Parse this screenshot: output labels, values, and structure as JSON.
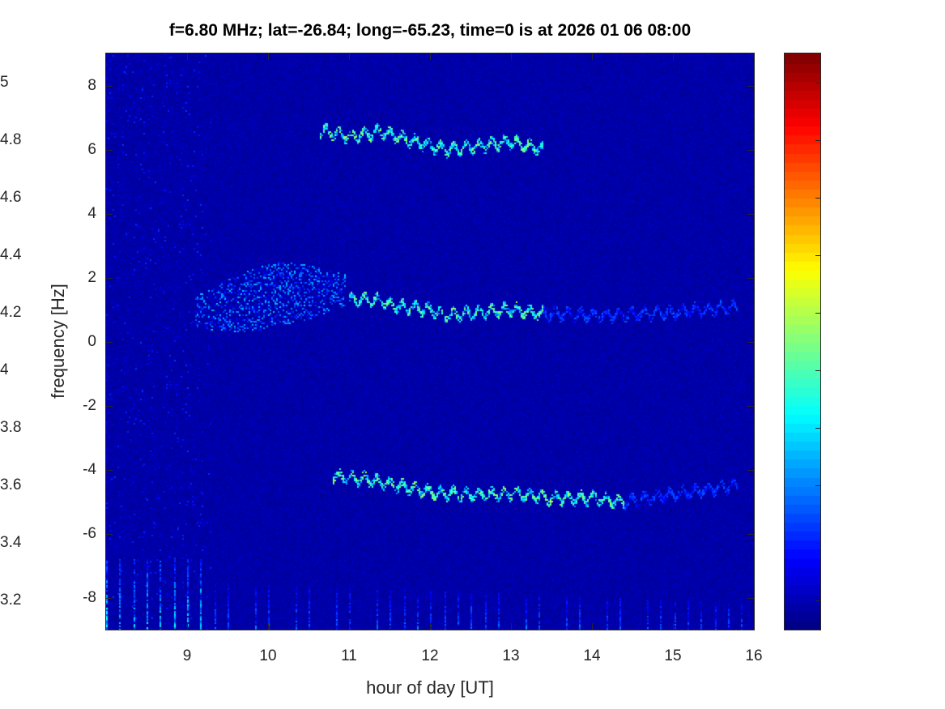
{
  "chart_data": {
    "type": "heatmap",
    "title": "f=6.80 MHz;  lat=-26.84; long=-65.23, time=0 is at 2026 01 06 08:00",
    "xlabel": "hour of day [UT]",
    "ylabel": "frequency [Hz]",
    "xlim": [
      8,
      16
    ],
    "ylim": [
      -9,
      9
    ],
    "clim": [
      3.1,
      5.1
    ],
    "colormap": "jet",
    "xticks": [
      9,
      10,
      11,
      12,
      13,
      14,
      15,
      16
    ],
    "yticks": [
      8,
      6,
      4,
      2,
      0,
      -2,
      -4,
      -6,
      -8
    ],
    "cticks": [
      5,
      4.8,
      4.6,
      4.4,
      4.2,
      4,
      3.8,
      3.6,
      3.4,
      3.2
    ],
    "background_level": 3.2,
    "features": {
      "upper_trace": [
        [
          10.65,
          6.6
        ],
        [
          11.0,
          6.4
        ],
        [
          11.4,
          6.55
        ],
        [
          11.8,
          6.25
        ],
        [
          12.2,
          6.0
        ],
        [
          12.6,
          6.1
        ],
        [
          13.0,
          6.25
        ],
        [
          13.4,
          6.0
        ]
      ],
      "middle_trace": [
        [
          11.0,
          1.3
        ],
        [
          11.3,
          1.3
        ],
        [
          11.6,
          1.1
        ],
        [
          12.0,
          1.0
        ],
        [
          12.2,
          0.8
        ],
        [
          12.6,
          0.9
        ],
        [
          13.0,
          1.0
        ],
        [
          13.3,
          0.9
        ],
        [
          14.0,
          0.8
        ],
        [
          15.0,
          0.9
        ],
        [
          15.8,
          1.1
        ]
      ],
      "lower_trace": [
        [
          10.8,
          -4.2
        ],
        [
          11.2,
          -4.3
        ],
        [
          11.6,
          -4.5
        ],
        [
          12.0,
          -4.7
        ],
        [
          12.5,
          -4.8
        ],
        [
          13.0,
          -4.75
        ],
        [
          13.5,
          -4.9
        ],
        [
          14.0,
          -4.9
        ],
        [
          14.4,
          -5.0
        ],
        [
          15.2,
          -4.7
        ],
        [
          15.8,
          -4.5
        ]
      ],
      "diffuse_region": {
        "x": [
          9.1,
          10.95
        ],
        "y_center": [
          [
            9.1,
            0.9
          ],
          [
            10.2,
            1.5
          ],
          [
            10.95,
            1.6
          ]
        ]
      },
      "bottom_stripes": {
        "y": [
          -9,
          -6.8
        ],
        "period_hours": 0.167
      }
    }
  }
}
